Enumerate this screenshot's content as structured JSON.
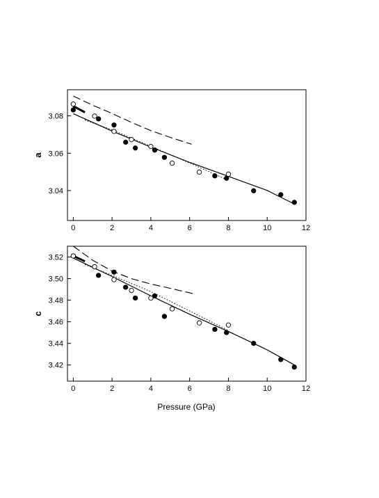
{
  "chart_data": [
    {
      "type": "scatter",
      "panel": "a",
      "title": "",
      "ylabel": "a",
      "xlabel": "",
      "xlim": [
        -0.3,
        12
      ],
      "ylim": [
        3.024,
        3.094
      ],
      "xticks": [
        0,
        2,
        4,
        6,
        8,
        10,
        12
      ],
      "yticks": [
        3.04,
        3.06,
        3.08
      ],
      "ytick_labels": [
        "3.04",
        "3.06",
        "3.08"
      ],
      "grid": false,
      "legend": "none",
      "series": [
        {
          "marker": "filled-circle",
          "x": [
            0.0,
            1.3,
            2.1,
            2.7,
            3.2,
            4.2,
            4.7,
            7.3,
            7.9,
            9.3,
            10.7,
            11.4
          ],
          "y": [
            3.0832,
            3.0784,
            3.0751,
            3.0659,
            3.0628,
            3.0617,
            3.0578,
            3.0479,
            3.0466,
            3.0399,
            3.0378,
            3.0337
          ]
        },
        {
          "marker": "open-circle",
          "x": [
            0.0,
            1.1,
            2.1,
            3.0,
            4.0,
            5.1,
            6.5,
            8.0
          ],
          "y": [
            3.0863,
            3.0799,
            3.0717,
            3.0673,
            3.0636,
            3.0547,
            3.0499,
            3.0488
          ]
        },
        {
          "line": "solid",
          "x": [
            0.0,
            2.0,
            4.0,
            6.0,
            8.0,
            10.0,
            11.4
          ],
          "y": [
            3.0812,
            3.0719,
            3.0633,
            3.0551,
            3.0476,
            3.0401,
            3.0328
          ]
        },
        {
          "line": "dotted",
          "x": [
            0.6,
            2.0,
            4.0,
            6.0,
            8.0
          ],
          "y": [
            3.0778,
            3.0725,
            3.0637,
            3.0548,
            3.0455
          ]
        },
        {
          "line": "dashed",
          "x": [
            0.0,
            1.0,
            2.0,
            3.0,
            4.0,
            5.0,
            6.1
          ],
          "y": [
            3.0906,
            3.0857,
            3.0813,
            3.0765,
            3.0721,
            3.0685,
            3.0648
          ]
        },
        {
          "line": "thick-solid",
          "x": [
            0.0,
            0.6
          ],
          "y": [
            3.0852,
            3.0819
          ]
        }
      ]
    },
    {
      "type": "scatter",
      "panel": "c",
      "title": "",
      "ylabel": "c",
      "xlabel": "Pressure (GPa)",
      "xlim": [
        -0.3,
        12
      ],
      "ylim": [
        3.405,
        3.53
      ],
      "xticks": [
        0,
        2,
        4,
        6,
        8,
        10,
        12
      ],
      "yticks": [
        3.42,
        3.44,
        3.46,
        3.48,
        3.5,
        3.52
      ],
      "ytick_labels": [
        "3.42",
        "3.44",
        "3.46",
        "3.48",
        "3.50",
        "3.52"
      ],
      "grid": false,
      "legend": "none",
      "series": [
        {
          "marker": "filled-circle",
          "x": [
            0.0,
            1.3,
            2.1,
            2.7,
            3.2,
            4.2,
            4.7,
            7.3,
            7.9,
            9.3,
            10.7,
            11.4
          ],
          "y": [
            3.521,
            3.503,
            3.506,
            3.492,
            3.482,
            3.484,
            3.465,
            3.453,
            3.45,
            3.44,
            3.425,
            3.418
          ]
        },
        {
          "marker": "open-circle",
          "x": [
            0.0,
            1.1,
            2.1,
            3.0,
            4.0,
            5.1,
            6.5,
            8.0
          ],
          "y": [
            3.521,
            3.511,
            3.499,
            3.489,
            3.482,
            3.472,
            3.459,
            3.457
          ]
        },
        {
          "line": "solid",
          "x": [
            0.0,
            2.0,
            4.0,
            6.0,
            8.0,
            10.0,
            11.4
          ],
          "y": [
            3.519,
            3.502,
            3.484,
            3.467,
            3.451,
            3.434,
            3.42
          ]
        },
        {
          "line": "dotted",
          "x": [
            0.6,
            2.0,
            4.0,
            6.0,
            8.0
          ],
          "y": [
            3.513,
            3.503,
            3.488,
            3.47,
            3.452
          ]
        },
        {
          "line": "dashed",
          "x": [
            0.0,
            1.0,
            2.0,
            3.0,
            4.0,
            5.0,
            6.2
          ],
          "y": [
            3.53,
            3.517,
            3.507,
            3.5,
            3.495,
            3.491,
            3.486
          ]
        },
        {
          "line": "thick-solid",
          "x": [
            0.0,
            0.6
          ],
          "y": [
            3.521,
            3.516
          ]
        }
      ]
    }
  ]
}
